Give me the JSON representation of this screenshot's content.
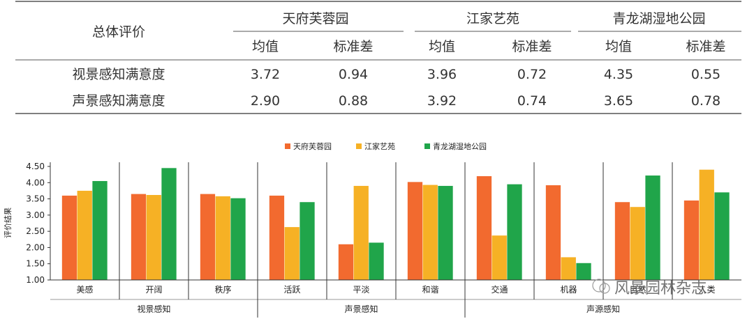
{
  "table": {
    "corner_label": "总体评价",
    "sites": [
      "天府芙蓉园",
      "江家艺苑",
      "青龙湖湿地公园"
    ],
    "sub_headers": [
      "均值",
      "标准差"
    ],
    "rows": [
      {
        "label": "视景感知满意度",
        "values": [
          "3.72",
          "0.94",
          "3.96",
          "0.72",
          "4.35",
          "0.55"
        ]
      },
      {
        "label": "声景感知满意度",
        "values": [
          "2.90",
          "0.88",
          "3.92",
          "0.74",
          "3.65",
          "0.78"
        ]
      }
    ]
  },
  "colors": {
    "series": [
      "#f26a2f",
      "#f6b125",
      "#20a54a"
    ],
    "axis": "#333333",
    "rule": "#555555"
  },
  "chart_data": {
    "type": "bar",
    "ylabel": "评价结果",
    "ylim": [
      1.0,
      4.5
    ],
    "yticks": [
      "1.00",
      "1.50",
      "2.00",
      "2.50",
      "3.00",
      "3.50",
      "4.00",
      "4.50"
    ],
    "legend_position": "top-center",
    "categories": [
      "美感",
      "开阔",
      "秩序",
      "活跃",
      "平淡",
      "和谐",
      "交通",
      "机器",
      "自然",
      "人类"
    ],
    "groups": [
      {
        "label": "视景感知",
        "span": 3
      },
      {
        "label": "声景感知",
        "span": 3
      },
      {
        "label": "声源感知",
        "span": 4
      }
    ],
    "series": [
      {
        "name": "天府芙蓉园",
        "values": [
          3.6,
          3.65,
          3.65,
          3.6,
          2.1,
          4.02,
          4.2,
          3.92,
          3.4,
          3.45
        ]
      },
      {
        "name": "江家艺苑",
        "values": [
          3.75,
          3.62,
          3.58,
          2.63,
          3.9,
          3.93,
          2.37,
          1.7,
          3.25,
          4.4
        ]
      },
      {
        "name": "青龙湖湿地公园",
        "values": [
          4.05,
          4.45,
          3.52,
          3.4,
          2.15,
          3.9,
          3.95,
          1.52,
          4.22,
          3.7
        ]
      }
    ]
  },
  "watermark": "风景园林杂志"
}
